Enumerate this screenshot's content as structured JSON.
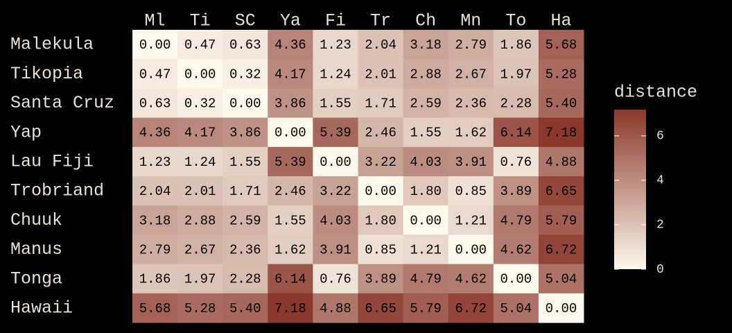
{
  "chart_data": {
    "type": "heatmap",
    "x": [
      "Ml",
      "Ti",
      "SC",
      "Ya",
      "Fi",
      "Tr",
      "Ch",
      "Mn",
      "To",
      "Ha"
    ],
    "y": [
      "Malekula",
      "Tikopia",
      "Santa Cruz",
      "Yap",
      "Lau Fiji",
      "Trobriand",
      "Chuuk",
      "Manus",
      "Tonga",
      "Hawaii"
    ],
    "values": [
      [
        0,
        0.47,
        0.63,
        4.36,
        1.23,
        2.04,
        3.18,
        2.79,
        1.86,
        5.68
      ],
      [
        0.47,
        0,
        0.32,
        4.17,
        1.24,
        2.01,
        2.88,
        2.67,
        1.97,
        5.28
      ],
      [
        0.63,
        0.32,
        0,
        3.86,
        1.55,
        1.71,
        2.59,
        2.36,
        2.28,
        5.4
      ],
      [
        4.36,
        4.17,
        3.86,
        0,
        5.39,
        2.46,
        1.55,
        1.62,
        6.14,
        7.18
      ],
      [
        1.23,
        1.24,
        1.55,
        5.39,
        0,
        3.22,
        4.03,
        3.91,
        0.76,
        4.88
      ],
      [
        2.04,
        2.01,
        1.71,
        2.46,
        3.22,
        0,
        1.8,
        0.85,
        3.89,
        6.65
      ],
      [
        3.18,
        2.88,
        2.59,
        1.55,
        4.03,
        1.8,
        0,
        1.21,
        4.79,
        5.79
      ],
      [
        2.79,
        2.67,
        2.36,
        1.62,
        3.91,
        0.85,
        1.21,
        0,
        4.62,
        6.72
      ],
      [
        1.86,
        1.97,
        2.28,
        6.14,
        0.76,
        3.89,
        4.79,
        4.62,
        0,
        5.04
      ],
      [
        5.68,
        5.28,
        5.4,
        7.18,
        4.88,
        6.65,
        5.79,
        6.72,
        5.04,
        0
      ]
    ],
    "value_labels": [
      [
        "0.00",
        "0.47",
        "0.63",
        "4.36",
        "1.23",
        "2.04",
        "3.18",
        "2.79",
        "1.86",
        "5.68"
      ],
      [
        "0.47",
        "0.00",
        "0.32",
        "4.17",
        "1.24",
        "2.01",
        "2.88",
        "2.67",
        "1.97",
        "5.28"
      ],
      [
        "0.63",
        "0.32",
        "0.00",
        "3.86",
        "1.55",
        "1.71",
        "2.59",
        "2.36",
        "2.28",
        "5.40"
      ],
      [
        "4.36",
        "4.17",
        "3.86",
        "0.00",
        "5.39",
        "2.46",
        "1.55",
        "1.62",
        "6.14",
        "7.18"
      ],
      [
        "1.23",
        "1.24",
        "1.55",
        "5.39",
        "0.00",
        "3.22",
        "4.03",
        "3.91",
        "0.76",
        "4.88"
      ],
      [
        "2.04",
        "2.01",
        "1.71",
        "2.46",
        "3.22",
        "0.00",
        "1.80",
        "0.85",
        "3.89",
        "6.65"
      ],
      [
        "3.18",
        "2.88",
        "2.59",
        "1.55",
        "4.03",
        "1.80",
        "0.00",
        "1.21",
        "4.79",
        "5.79"
      ],
      [
        "2.79",
        "2.67",
        "2.36",
        "1.62",
        "3.91",
        "0.85",
        "1.21",
        "0.00",
        "4.62",
        "6.72"
      ],
      [
        "1.86",
        "1.97",
        "2.28",
        "6.14",
        "0.76",
        "3.89",
        "4.79",
        "4.62",
        "0.00",
        "5.04"
      ],
      [
        "5.68",
        "5.28",
        "5.40",
        "7.18",
        "4.88",
        "6.65",
        "5.79",
        "6.72",
        "5.04",
        "0.00"
      ]
    ],
    "legend_title": "distance",
    "clim": [
      0,
      7.18
    ],
    "cticks": [
      0,
      2,
      4,
      6
    ],
    "colors": [
      "#fcf8ec",
      "#8b382c"
    ]
  }
}
